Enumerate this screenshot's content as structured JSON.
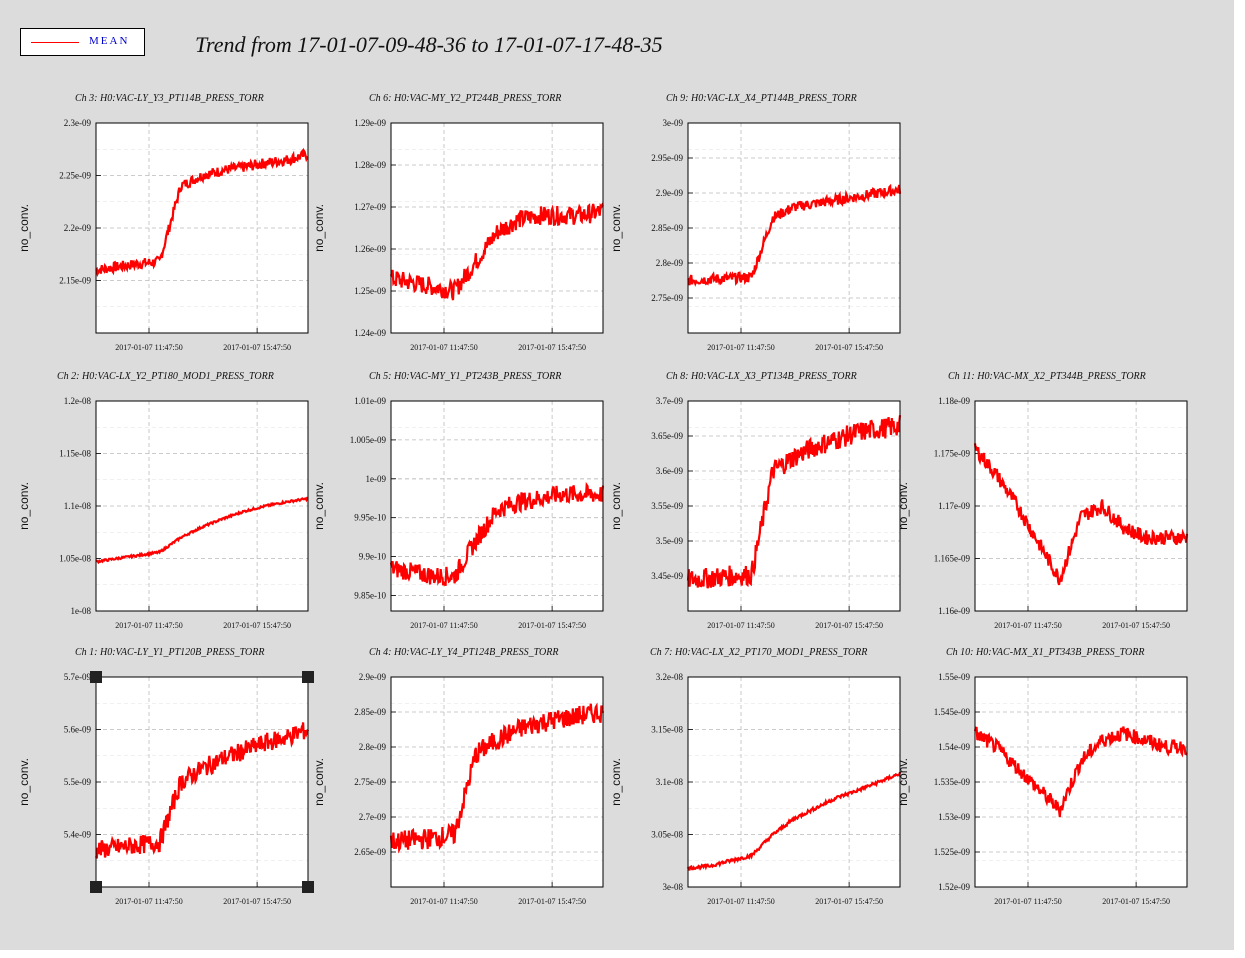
{
  "legend": {
    "label": "MEAN",
    "line_color": "#ff0000"
  },
  "title": "Trend from 17-01-07-09-48-36 to 17-01-07-17-48-35",
  "colors": {
    "series": "#ff0000",
    "background": "#dcdcdc",
    "plot_bg": "#ffffff",
    "grid": "#bbbbbb",
    "selection": "#222222"
  },
  "chart_data": [
    {
      "type": "line",
      "title": "Ch 3: H0:VAC-LY_Y3_PT114B_PRESS_TORR",
      "ylabel": "no_conv.",
      "xticks": [
        "2017-01-07 11:47:50",
        "2017-01-07 15:47:50"
      ],
      "yticks": [
        "2.3e-09",
        "2.25e-09",
        "2.2e-09",
        "2.15e-09"
      ],
      "ylim": [
        2.1e-09,
        2.3e-09
      ],
      "series": [
        {
          "values": [
            2.16e-09,
            2.163e-09,
            2.166e-09,
            2.168e-09,
            2.24e-09,
            2.25e-09,
            2.255e-09,
            2.258e-09,
            2.262e-09,
            2.265e-09,
            2.27e-09
          ]
        }
      ]
    },
    {
      "type": "line",
      "title": "Ch 6: H0:VAC-MY_Y2_PT244B_PRESS_TORR",
      "ylabel": "no_conv.",
      "xticks": [
        "2017-01-07 11:47:50",
        "2017-01-07 15:47:50"
      ],
      "yticks": [
        "1.29e-09",
        "1.28e-09",
        "1.27e-09",
        "1.26e-09",
        "1.25e-09",
        "1.24e-09"
      ],
      "ylim": [
        1.24e-09,
        1.29e-09
      ],
      "series": [
        {
          "values": [
            1.253e-09,
            1.252e-09,
            1.251e-09,
            1.25e-09,
            1.257e-09,
            1.264e-09,
            1.267e-09,
            1.268e-09,
            1.268e-09,
            1.268e-09,
            1.269e-09
          ]
        }
      ]
    },
    {
      "type": "line",
      "title": "Ch 9: H0:VAC-LX_X4_PT144B_PRESS_TORR",
      "ylabel": "no_conv.",
      "xticks": [
        "2017-01-07 11:47:50",
        "2017-01-07 15:47:50"
      ],
      "yticks": [
        "3e-09",
        "2.95e-09",
        "2.9e-09",
        "2.85e-09",
        "2.8e-09",
        "2.75e-09"
      ],
      "ylim": [
        2.7e-09,
        3e-09
      ],
      "series": [
        {
          "values": [
            2.775e-09,
            2.777e-09,
            2.778e-09,
            2.78e-09,
            2.865e-09,
            2.88e-09,
            2.885e-09,
            2.89e-09,
            2.895e-09,
            2.9e-09,
            2.905e-09
          ]
        }
      ]
    },
    {
      "type": "line",
      "title": "Ch 2: H0:VAC-LX_Y2_PT180_MOD1_PRESS_TORR",
      "ylabel": "no_conv.",
      "xticks": [
        "2017-01-07 11:47:50",
        "2017-01-07 15:47:50"
      ],
      "yticks": [
        "1.2e-08",
        "1.15e-08",
        "1.1e-08",
        "1.05e-08",
        "1e-08"
      ],
      "ylim": [
        1e-08,
        1.2e-08
      ],
      "series": [
        {
          "values": [
            1.047e-08,
            1.05e-08,
            1.053e-08,
            1.056e-08,
            1.07e-08,
            1.08e-08,
            1.088e-08,
            1.095e-08,
            1.1e-08,
            1.104e-08,
            1.107e-08
          ]
        }
      ]
    },
    {
      "type": "line",
      "title": "Ch 5: H0:VAC-MY_Y1_PT243B_PRESS_TORR",
      "ylabel": "no_conv.",
      "xticks": [
        "2017-01-07 11:47:50",
        "2017-01-07 15:47:50"
      ],
      "yticks": [
        "1.01e-09",
        "1.005e-09",
        "1e-09",
        "9.95e-10",
        "9.9e-10",
        "9.85e-10"
      ],
      "ylim": [
        9.83e-10,
        1.01e-09
      ],
      "series": [
        {
          "values": [
            9.885e-10,
            9.88e-10,
            9.875e-10,
            9.875e-10,
            9.92e-10,
            9.96e-10,
            9.97e-10,
            9.975e-10,
            9.98e-10,
            9.98e-10,
            9.98e-10
          ]
        }
      ]
    },
    {
      "type": "line",
      "title": "Ch 8: H0:VAC-LX_X3_PT134B_PRESS_TORR",
      "ylabel": "no_conv.",
      "xticks": [
        "2017-01-07 11:47:50",
        "2017-01-07 15:47:50"
      ],
      "yticks": [
        "3.7e-09",
        "3.65e-09",
        "3.6e-09",
        "3.55e-09",
        "3.5e-09",
        "3.45e-09"
      ],
      "ylim": [
        3.4e-09,
        3.7e-09
      ],
      "series": [
        {
          "values": [
            3.445e-09,
            3.447e-09,
            3.45e-09,
            3.452e-09,
            3.6e-09,
            3.62e-09,
            3.635e-09,
            3.645e-09,
            3.655e-09,
            3.66e-09,
            3.665e-09
          ]
        }
      ]
    },
    {
      "type": "line",
      "title": "Ch 11: H0:VAC-MX_X2_PT344B_PRESS_TORR",
      "ylabel": "no_conv.",
      "xticks": [
        "2017-01-07 11:47:50",
        "2017-01-07 15:47:50"
      ],
      "yticks": [
        "1.18e-09",
        "1.175e-09",
        "1.17e-09",
        "1.165e-09",
        "1.16e-09"
      ],
      "ylim": [
        1.16e-09,
        1.18e-09
      ],
      "series": [
        {
          "values": [
            1.1755e-09,
            1.173e-09,
            1.17e-09,
            1.1665e-09,
            1.163e-09,
            1.169e-09,
            1.17e-09,
            1.168e-09,
            1.167e-09,
            1.167e-09,
            1.167e-09
          ]
        }
      ]
    },
    {
      "type": "line",
      "title": "Ch 1: H0:VAC-LY_Y1_PT120B_PRESS_TORR",
      "ylabel": "no_conv.",
      "xticks": [
        "2017-01-07 11:47:50",
        "2017-01-07 15:47:50"
      ],
      "yticks": [
        "5.7e-09",
        "5.6e-09",
        "5.5e-09",
        "5.4e-09"
      ],
      "ylim": [
        5.3e-09,
        5.7e-09
      ],
      "series": [
        {
          "values": [
            5.37e-09,
            5.375e-09,
            5.38e-09,
            5.385e-09,
            5.5e-09,
            5.525e-09,
            5.545e-09,
            5.56e-09,
            5.575e-09,
            5.585e-09,
            5.6e-09
          ]
        }
      ]
    },
    {
      "type": "line",
      "title": "Ch 4: H0:VAC-LY_Y4_PT124B_PRESS_TORR",
      "ylabel": "no_conv.",
      "xticks": [
        "2017-01-07 11:47:50",
        "2017-01-07 15:47:50"
      ],
      "yticks": [
        "2.9e-09",
        "2.85e-09",
        "2.8e-09",
        "2.75e-09",
        "2.7e-09",
        "2.65e-09"
      ],
      "ylim": [
        2.6e-09,
        2.9e-09
      ],
      "series": [
        {
          "values": [
            2.665e-09,
            2.667e-09,
            2.67e-09,
            2.675e-09,
            2.79e-09,
            2.81e-09,
            2.825e-09,
            2.835e-09,
            2.84e-09,
            2.845e-09,
            2.85e-09
          ]
        }
      ]
    },
    {
      "type": "line",
      "title": "Ch 7: H0:VAC-LX_X2_PT170_MOD1_PRESS_TORR",
      "ylabel": "no_conv.",
      "xticks": [
        "2017-01-07 11:47:50",
        "2017-01-07 15:47:50"
      ],
      "yticks": [
        "3.2e-08",
        "3.15e-08",
        "3.1e-08",
        "3.05e-08",
        "3e-08"
      ],
      "ylim": [
        3e-08,
        3.2e-08
      ],
      "series": [
        {
          "values": [
            3.018e-08,
            3.02e-08,
            3.025e-08,
            3.03e-08,
            3.05e-08,
            3.065e-08,
            3.075e-08,
            3.085e-08,
            3.092e-08,
            3.1e-08,
            3.108e-08
          ]
        }
      ]
    },
    {
      "type": "line",
      "title": "Ch 10: H0:VAC-MX_X1_PT343B_PRESS_TORR",
      "ylabel": "no_conv.",
      "xticks": [
        "2017-01-07 11:47:50",
        "2017-01-07 15:47:50"
      ],
      "yticks": [
        "1.55e-09",
        "1.545e-09",
        "1.54e-09",
        "1.535e-09",
        "1.53e-09",
        "1.525e-09",
        "1.52e-09"
      ],
      "ylim": [
        1.52e-09,
        1.55e-09
      ],
      "series": [
        {
          "values": [
            1.542e-09,
            1.54e-09,
            1.537e-09,
            1.534e-09,
            1.531e-09,
            1.538e-09,
            1.541e-09,
            1.542e-09,
            1.541e-09,
            1.54e-09,
            1.54e-09
          ]
        }
      ]
    }
  ]
}
